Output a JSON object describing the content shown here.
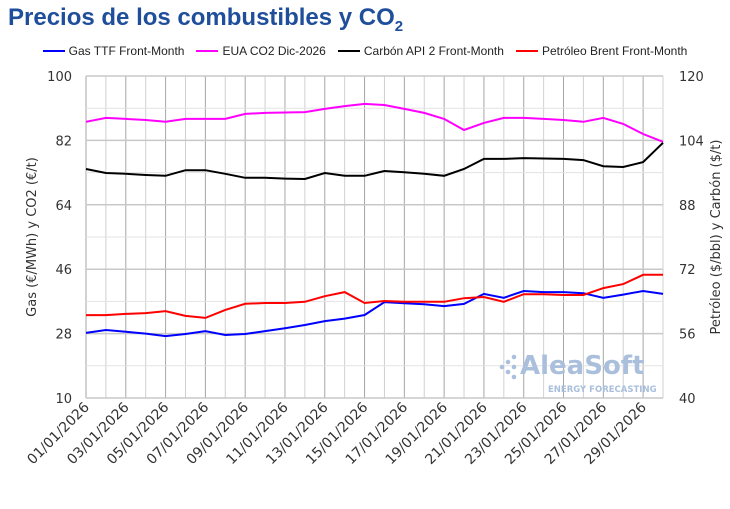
{
  "title": "Precios de los combustibles y CO",
  "title_sub": "2",
  "watermark": {
    "brand": "AleaSoft",
    "tagline": "ENERGY FORECASTING"
  },
  "chart_data": {
    "type": "line",
    "x": [
      "01/01/2026",
      "02/01/2026",
      "03/01/2026",
      "04/01/2026",
      "05/01/2026",
      "06/01/2026",
      "07/01/2026",
      "08/01/2026",
      "09/01/2026",
      "10/01/2026",
      "11/01/2026",
      "12/01/2026",
      "13/01/2026",
      "14/01/2026",
      "15/01/2026",
      "16/01/2026",
      "17/01/2026",
      "18/01/2026",
      "19/01/2026",
      "20/01/2026",
      "21/01/2026",
      "22/01/2026",
      "23/01/2026",
      "24/01/2026",
      "25/01/2026",
      "26/01/2026",
      "27/01/2026",
      "28/01/2026",
      "29/01/2026",
      "30/01/2026"
    ],
    "x_tick_labels": [
      "01/01/2026",
      "03/01/2026",
      "05/01/2026",
      "07/01/2026",
      "09/01/2026",
      "11/01/2026",
      "13/01/2026",
      "15/01/2026",
      "17/01/2026",
      "19/01/2026",
      "21/01/2026",
      "23/01/2026",
      "25/01/2026",
      "27/01/2026",
      "29/01/2026"
    ],
    "ylabel_left": "Gas (€/MWh) y CO2 (€/t)",
    "ylabel_right": "Petróleo ($/bbl) y Carbón ($/t)",
    "ylim_left": [
      10,
      100
    ],
    "yticks_left": [
      10,
      28,
      46,
      64,
      82,
      100
    ],
    "ylim_right": [
      40,
      120
    ],
    "yticks_right": [
      40,
      56,
      72,
      88,
      104,
      120
    ],
    "grid": true,
    "legend_position": "top",
    "series": [
      {
        "name": "Gas TTF Front-Month",
        "color": "#0000ff",
        "axis": "left",
        "values": [
          28.2,
          29,
          28.5,
          28,
          27.3,
          27.9,
          28.7,
          27.6,
          27.9,
          28.7,
          29.5,
          30.4,
          31.5,
          32.2,
          33.2,
          36.8,
          36.5,
          36.2,
          35.7,
          36.3,
          39.1,
          38,
          39.9,
          39.6,
          39.6,
          39.3,
          38,
          38.9,
          39.9,
          39.1
        ]
      },
      {
        "name": "EUA CO2 Dic-2026",
        "color": "#ff00ff",
        "axis": "left",
        "values": [
          87.2,
          88.3,
          88,
          87.7,
          87.2,
          88,
          88,
          88,
          89.4,
          89.7,
          89.8,
          89.9,
          90.8,
          91.6,
          92.2,
          91.9,
          90.8,
          89.7,
          88,
          84.9,
          86.9,
          88.3,
          88.3,
          88,
          87.7,
          87.2,
          88.3,
          86.6,
          83.8,
          81.6
        ]
      },
      {
        "name": "Carbón API 2 Front-Month",
        "color": "#000000",
        "axis": "right",
        "values": [
          96.9,
          95.9,
          95.7,
          95.4,
          95.2,
          96.6,
          96.6,
          95.7,
          94.7,
          94.7,
          94.5,
          94.4,
          95.9,
          95.2,
          95.2,
          96.4,
          96.1,
          95.7,
          95.2,
          96.9,
          99.4,
          99.4,
          99.6,
          99.5,
          99.4,
          99.1,
          97.6,
          97.4,
          98.6,
          103.4
        ]
      },
      {
        "name": "Petróleo Brent Front-Month",
        "color": "#ff0000",
        "axis": "right",
        "values": [
          60.6,
          60.6,
          60.9,
          61.1,
          61.6,
          60.4,
          59.9,
          61.9,
          63.4,
          63.6,
          63.6,
          63.9,
          65.3,
          66.3,
          63.6,
          64.1,
          63.9,
          63.9,
          63.9,
          64.8,
          65.1,
          63.9,
          65.8,
          65.8,
          65.6,
          65.6,
          67.3,
          68.3,
          70.6,
          70.6
        ]
      }
    ]
  }
}
